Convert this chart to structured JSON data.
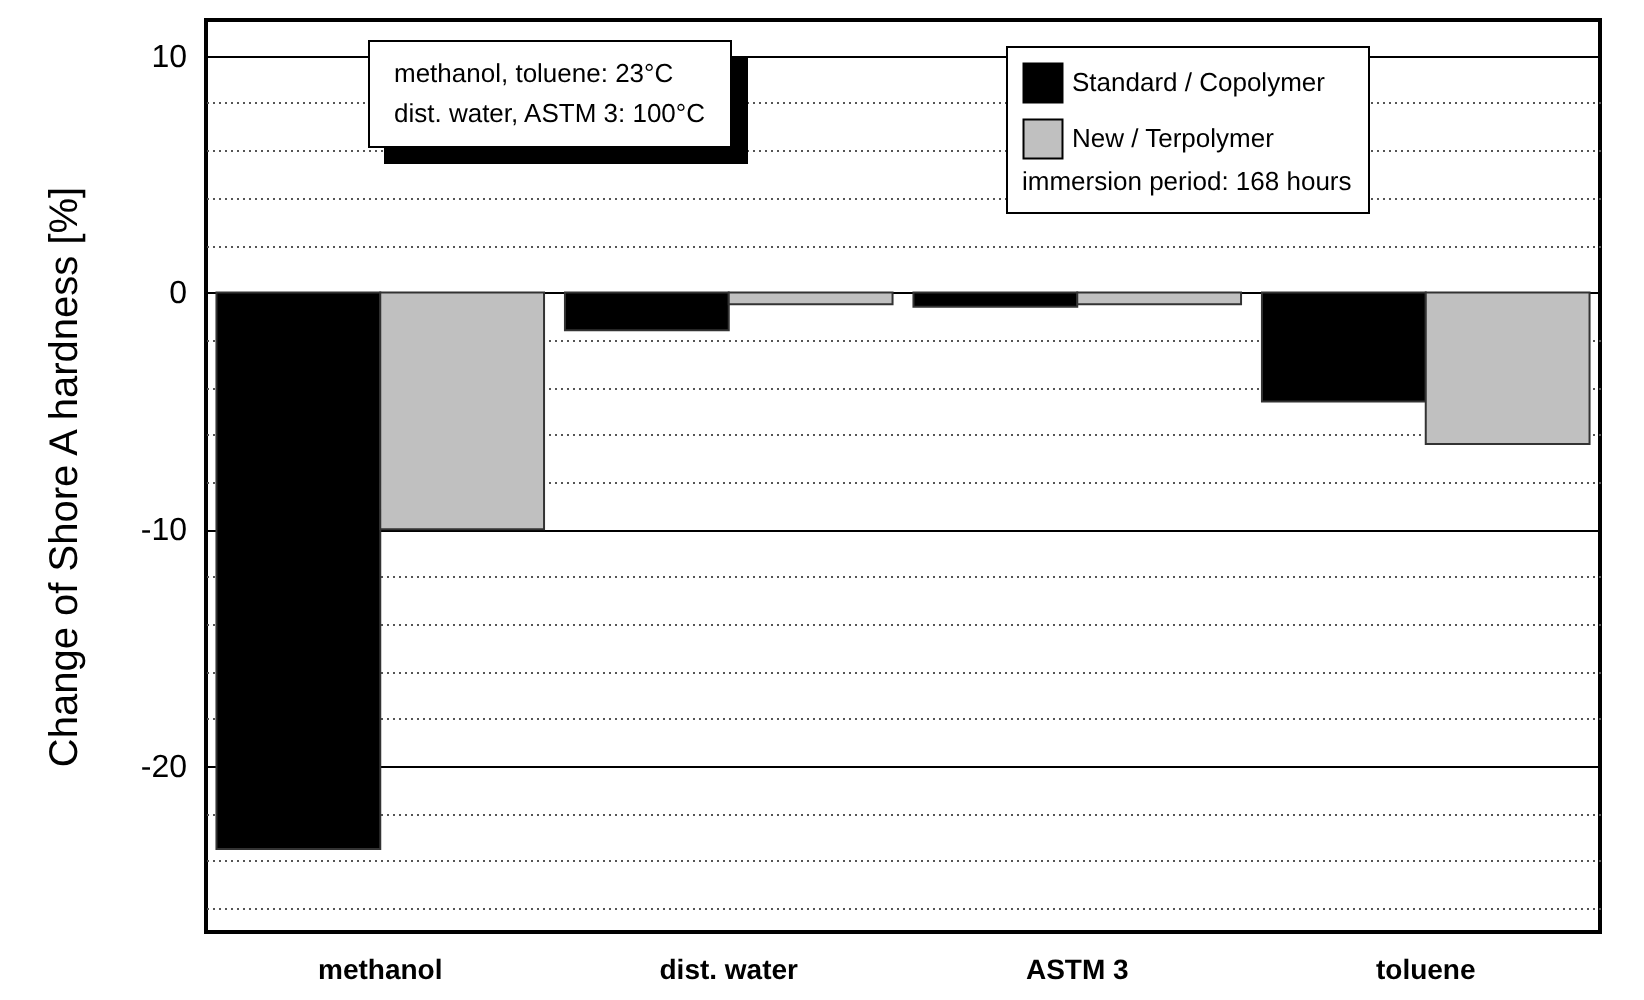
{
  "chart_data": {
    "type": "bar",
    "ylabel": "Change of Shore A hardness [%]",
    "categories": [
      "methanol",
      "dist. water",
      "ASTM 3",
      "toluene"
    ],
    "series": [
      {
        "name": "Standard / Copolymer",
        "color": "#000000",
        "values": [
          -23.5,
          -1.6,
          -0.6,
          -4.6
        ]
      },
      {
        "name": "New / Terpolymer",
        "color": "#c0c0c0",
        "values": [
          -10,
          -0.5,
          -0.5,
          -6.4
        ]
      }
    ],
    "ylim": [
      -27,
      11.5
    ],
    "yticks": [
      {
        "value": -26,
        "label": null
      },
      {
        "value": -24,
        "label": null
      },
      {
        "value": -22,
        "label": null
      },
      -20,
      {
        "value": -18,
        "label": null
      },
      {
        "value": -16,
        "label": null
      },
      {
        "value": -14,
        "label": null
      },
      {
        "value": -12,
        "label": null
      },
      -10,
      {
        "value": -8,
        "label": null
      },
      {
        "value": -6,
        "label": null
      },
      {
        "value": -4,
        "label": null
      },
      {
        "value": -2,
        "label": null
      },
      0,
      {
        "value": 2,
        "label": null
      },
      {
        "value": 4,
        "label": null
      },
      {
        "value": 6,
        "label": null
      },
      {
        "value": 8,
        "label": null
      },
      10
    ],
    "grid": true,
    "legend": "top",
    "legend_title": "immersion period: 168 hours",
    "annotations": [
      "methanol, toluene: 23°C",
      "dist. water, ASTM 3: 100°C"
    ]
  }
}
